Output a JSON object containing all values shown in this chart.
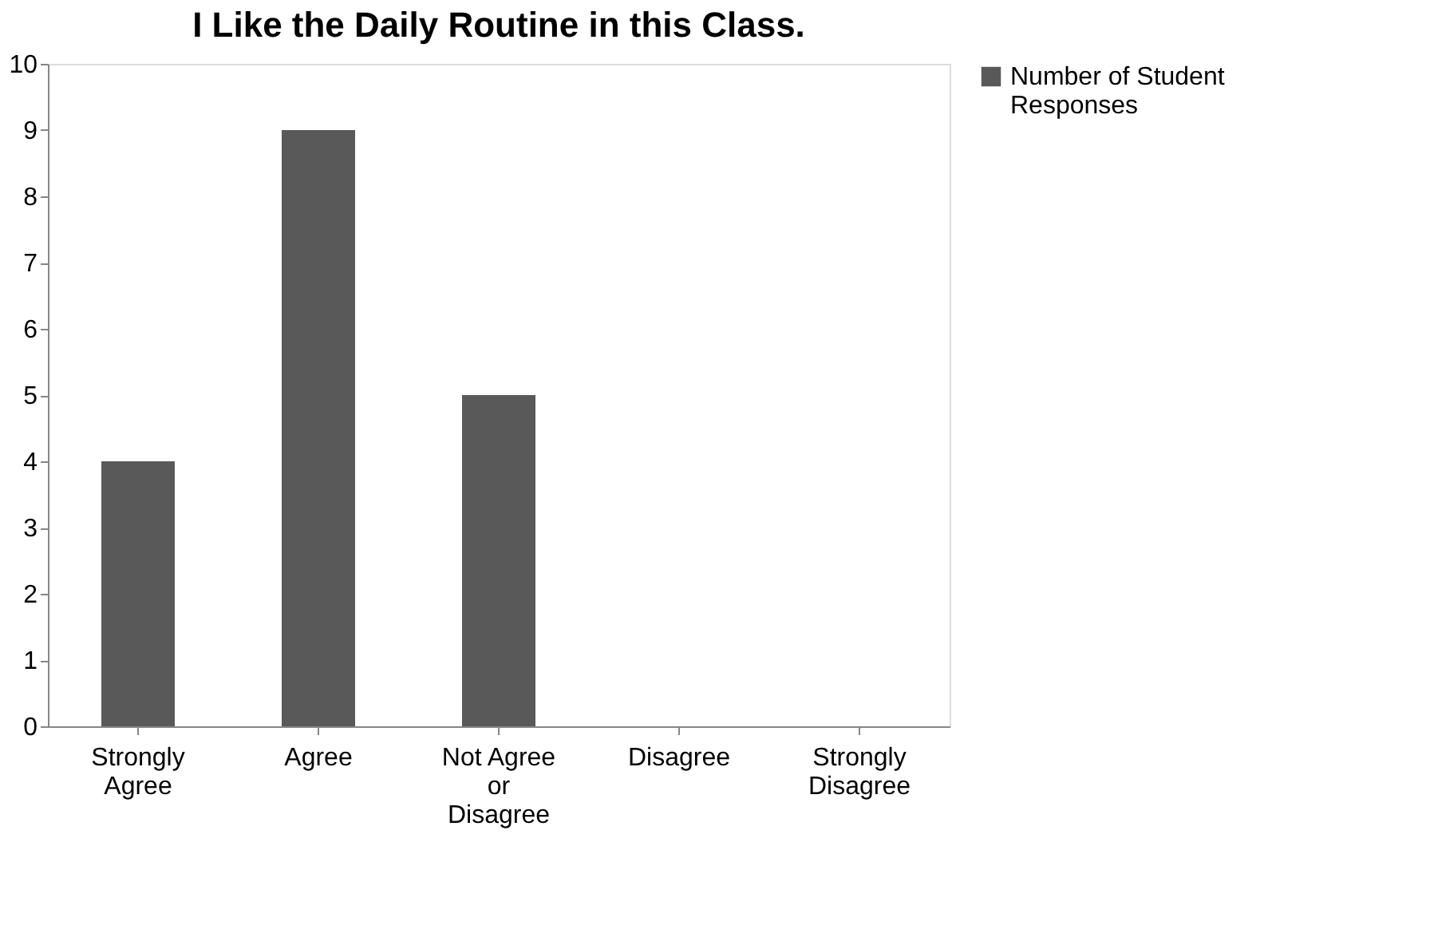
{
  "chart_data": {
    "type": "bar",
    "title": "I Like the Daily Routine in this Class.",
    "categories": [
      "Strongly Agree",
      "Agree",
      "Not Agree or Disagree",
      "Disagree",
      "Strongly Disagree"
    ],
    "series": [
      {
        "name": "Number of Student Responses",
        "color": "#595959",
        "values": [
          4,
          9,
          5,
          0,
          0
        ]
      }
    ],
    "ylim": [
      0,
      10
    ],
    "yticks": [
      0,
      1,
      2,
      3,
      4,
      5,
      6,
      7,
      8,
      9,
      10
    ],
    "grid": false,
    "legend": "right"
  }
}
